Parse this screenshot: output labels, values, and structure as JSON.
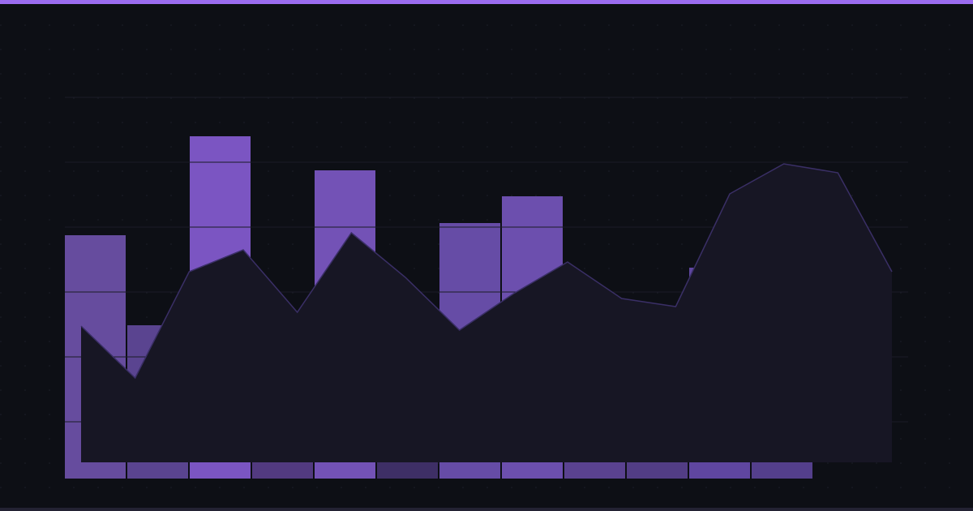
{
  "chart_data": [
    {
      "type": "bar",
      "values": [
        300,
        189,
        422,
        150,
        380,
        120,
        315,
        348,
        180,
        170,
        260,
        170
      ],
      "colors": [
        "#664c9e",
        "#5a4490",
        "#7b55c2",
        "#523a80",
        "#7352b6",
        "#3e2f66",
        "#664ca6",
        "#6c4fae",
        "#5a4290",
        "#523d85",
        "#5f46a0",
        "#543f8c"
      ],
      "ylim": [
        0,
        470
      ],
      "yticks": [
        70,
        150,
        230,
        310,
        390,
        470
      ],
      "grid": true
    },
    {
      "type": "area",
      "x": [
        0,
        1,
        2,
        3,
        4,
        5,
        6,
        7,
        8,
        9,
        10,
        11,
        12,
        13,
        14,
        15
      ],
      "values": [
        168,
        104,
        235,
        262,
        185,
        283,
        228,
        163,
        208,
        247,
        202,
        192,
        331,
        368,
        357,
        235
      ],
      "xlim": [
        0,
        15
      ],
      "ylim": [
        0,
        450
      ],
      "color": "#171624",
      "line_color": "#3a2f66"
    }
  ]
}
